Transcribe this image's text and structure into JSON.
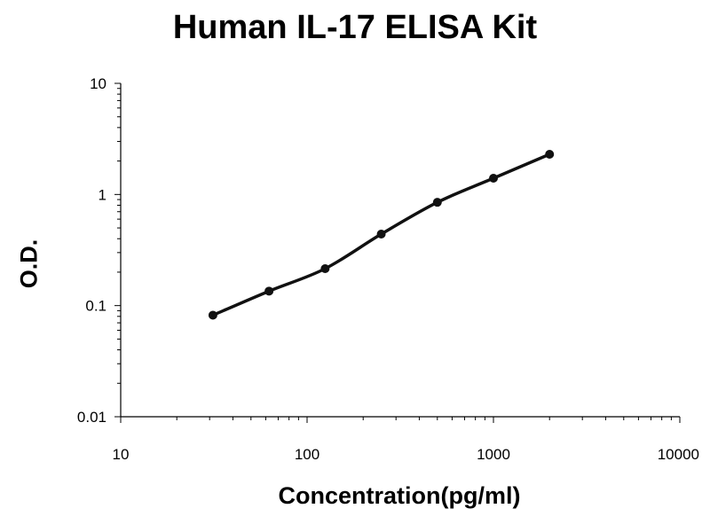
{
  "chart_data": {
    "type": "line",
    "title": "Human IL-17 ELISA Kit",
    "xlabel": "Concentration(pg/ml)",
    "ylabel": "O.D.",
    "xscale": "log",
    "yscale": "log",
    "xlim": [
      10,
      10000
    ],
    "ylim": [
      0.01,
      10
    ],
    "x_tick_labels": [
      "10",
      "100",
      "1000",
      "10000"
    ],
    "y_tick_labels": [
      "0.01",
      "0.1",
      "1",
      "10"
    ],
    "x_ticks": [
      10,
      100,
      1000,
      10000
    ],
    "y_ticks": [
      0.01,
      0.1,
      1,
      10
    ],
    "grid": false,
    "legend": "none",
    "line_color": "#111111",
    "series": [
      {
        "x": [
          31.25,
          62.5,
          125,
          250,
          500,
          1000,
          2000
        ],
        "y": [
          0.082,
          0.135,
          0.215,
          0.44,
          0.85,
          1.4,
          2.3
        ]
      }
    ]
  }
}
